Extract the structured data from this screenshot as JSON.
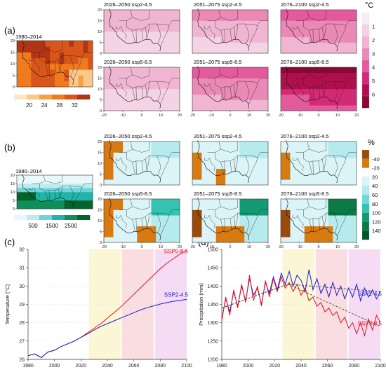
{
  "panel_labels": [
    "(a)",
    "(b)",
    "(c)",
    "(d)"
  ],
  "map_axis_ticks": {
    "lon": [
      "-20",
      "-10",
      "0",
      "10",
      "20"
    ],
    "lat": [
      "0",
      "5",
      "10",
      "15",
      "20"
    ]
  },
  "panel_a": {
    "baseline_title": "1980–2014",
    "baseline_colorbar_ticks": [
      "20",
      "24",
      "28",
      "32"
    ],
    "scenario_titles": [
      "2026–2050 ssp2-4.5",
      "2051–2075 ssp2-4.5",
      "2076–2100 ssp2-4.5",
      "2026–2050 ssp5-8.5",
      "2051–2075 ssp5-8.5",
      "2076–2100 ssp5-8.5"
    ],
    "change_unit": "°C",
    "change_colorbar_ticks": [
      "1",
      "2",
      "3",
      "4",
      "5",
      "6"
    ],
    "baseline_colors": [
      "#fde6c6",
      "#fbc88a",
      "#f7a04a",
      "#f07b1f",
      "#d9561a",
      "#b23417"
    ],
    "change_colors": [
      "#f7eef3",
      "#f4d4e4",
      "#f0b6d1",
      "#ea88b6",
      "#e35b9c",
      "#d32a77",
      "#b00f4e",
      "#8a0836"
    ]
  },
  "panel_b": {
    "baseline_title": "1980–2014",
    "baseline_colorbar_ticks": [
      "500",
      "1500",
      "2500"
    ],
    "scenario_titles": [
      "2026–2050 ssp2-4.5",
      "2051–2075 ssp2-4.5",
      "2076–2100 ssp2-4.5",
      "2026–2050 ssp5-8.5",
      "2051–2075 ssp5-8.5",
      "2076–2100 ssp5-8.5"
    ],
    "change_unit": "%",
    "change_colorbar_ticks": [
      "-40",
      "-20",
      "20",
      "40",
      "60",
      "80",
      "100",
      "120",
      "140"
    ],
    "baseline_colors": [
      "#e9f8fb",
      "#bdebef",
      "#6fd5d9",
      "#1fb5a8",
      "#0d8f5a",
      "#04622b"
    ],
    "change_colors": [
      "#9c4a0c",
      "#d77a12",
      "#ffffff",
      "#dbf4f7",
      "#b6ebee",
      "#6fd9d6",
      "#36c2b0",
      "#149a72",
      "#0b7a44",
      "#04552b"
    ]
  },
  "chart_data": [
    {
      "type": "line",
      "panel": "(c)",
      "xlabel": "",
      "ylabel": "Temperature (°C)",
      "xlim": [
        1980,
        2100
      ],
      "ylim": [
        26,
        32
      ],
      "xticks": [
        1980,
        2000,
        2020,
        2040,
        2060,
        2080,
        2100
      ],
      "yticks": [
        26,
        27,
        28,
        29,
        30,
        31,
        32
      ],
      "shaded_periods": [
        {
          "range": [
            2026,
            2050
          ],
          "color": "#fbf6d4"
        },
        {
          "range": [
            2051,
            2075
          ],
          "color": "#f9dde0"
        },
        {
          "range": [
            2076,
            2100
          ],
          "color": "#f5dcf4"
        }
      ],
      "series": [
        {
          "name": "SSP5-8.5",
          "color": "#e8121b",
          "x": [
            1980,
            1985,
            1990,
            1995,
            2000,
            2005,
            2010,
            2015,
            2020,
            2025,
            2030,
            2035,
            2040,
            2045,
            2050,
            2055,
            2060,
            2065,
            2070,
            2075,
            2080,
            2085,
            2090,
            2095,
            2100
          ],
          "y": [
            26.2,
            26.3,
            26.1,
            26.4,
            26.5,
            26.7,
            26.85,
            27.0,
            27.2,
            27.45,
            27.7,
            27.95,
            28.25,
            28.55,
            28.85,
            29.2,
            29.55,
            29.9,
            30.25,
            30.6,
            30.95,
            31.25,
            31.5,
            31.75,
            31.95
          ]
        },
        {
          "name": "SSP2-4.5",
          "color": "#1d1ae0",
          "x": [
            1980,
            1985,
            1990,
            1995,
            2000,
            2005,
            2010,
            2015,
            2020,
            2025,
            2030,
            2035,
            2040,
            2045,
            2050,
            2055,
            2060,
            2065,
            2070,
            2075,
            2080,
            2085,
            2090,
            2095,
            2100
          ],
          "y": [
            26.2,
            26.3,
            26.1,
            26.4,
            26.5,
            26.7,
            26.85,
            27.0,
            27.2,
            27.4,
            27.6,
            27.8,
            27.95,
            28.1,
            28.25,
            28.4,
            28.55,
            28.7,
            28.82,
            28.92,
            29.02,
            29.1,
            29.17,
            29.22,
            29.27
          ]
        }
      ]
    },
    {
      "type": "line",
      "panel": "(d)",
      "xlabel": "",
      "ylabel": "Precipitation (mm)",
      "xlim": [
        1980,
        2100
      ],
      "ylim": [
        1200,
        1500
      ],
      "xticks": [
        1980,
        2000,
        2020,
        2040,
        2060,
        2080,
        2100
      ],
      "yticks": [
        1200,
        1250,
        1300,
        1350,
        1400,
        1450,
        1500
      ],
      "shaded_periods": [
        {
          "range": [
            2026,
            2050
          ],
          "color": "#fbf6d4"
        },
        {
          "range": [
            2051,
            2075
          ],
          "color": "#f9dde0"
        },
        {
          "range": [
            2076,
            2100
          ],
          "color": "#f5dcf4"
        }
      ],
      "series": [
        {
          "name": "SSP2-4.5",
          "color": "#1d1ae0",
          "x": [
            1980,
            1983,
            1986,
            1989,
            1992,
            1995,
            1998,
            2001,
            2004,
            2007,
            2010,
            2013,
            2016,
            2019,
            2022,
            2025,
            2028,
            2031,
            2034,
            2037,
            2040,
            2043,
            2046,
            2049,
            2052,
            2055,
            2058,
            2061,
            2064,
            2067,
            2070,
            2073,
            2076,
            2079,
            2082,
            2085,
            2088,
            2091,
            2094,
            2097,
            2100
          ],
          "y": [
            1310,
            1365,
            1330,
            1385,
            1345,
            1400,
            1360,
            1420,
            1375,
            1395,
            1350,
            1410,
            1380,
            1425,
            1390,
            1435,
            1405,
            1440,
            1400,
            1430,
            1415,
            1385,
            1445,
            1390,
            1420,
            1380,
            1405,
            1370,
            1410,
            1375,
            1400,
            1365,
            1395,
            1370,
            1405,
            1360,
            1395,
            1370,
            1390,
            1365,
            1385
          ]
        },
        {
          "name": "SSP5-8.5",
          "color": "#e8121b",
          "x": [
            1980,
            1983,
            1986,
            1989,
            1992,
            1995,
            1998,
            2001,
            2004,
            2007,
            2010,
            2013,
            2016,
            2019,
            2022,
            2025,
            2028,
            2031,
            2034,
            2037,
            2040,
            2043,
            2046,
            2049,
            2052,
            2055,
            2058,
            2061,
            2064,
            2067,
            2070,
            2073,
            2076,
            2079,
            2082,
            2085,
            2088,
            2091,
            2094,
            2097,
            2100
          ],
          "y": [
            1305,
            1370,
            1320,
            1390,
            1340,
            1405,
            1355,
            1430,
            1360,
            1400,
            1345,
            1415,
            1370,
            1420,
            1385,
            1425,
            1395,
            1410,
            1385,
            1405,
            1375,
            1395,
            1360,
            1370,
            1345,
            1355,
            1330,
            1340,
            1320,
            1330,
            1300,
            1315,
            1285,
            1300,
            1270,
            1300,
            1265,
            1310,
            1280,
            1320,
            1300
          ]
        }
      ],
      "trend_lines": [
        {
          "series": "SSP2-4.5",
          "x": [
            1980,
            2030,
            2100
          ],
          "y": [
            1340,
            1405,
            1385
          ]
        },
        {
          "series": "SSP5-8.5",
          "x": [
            1980,
            2030,
            2100
          ],
          "y": [
            1340,
            1405,
            1290
          ]
        }
      ]
    }
  ]
}
